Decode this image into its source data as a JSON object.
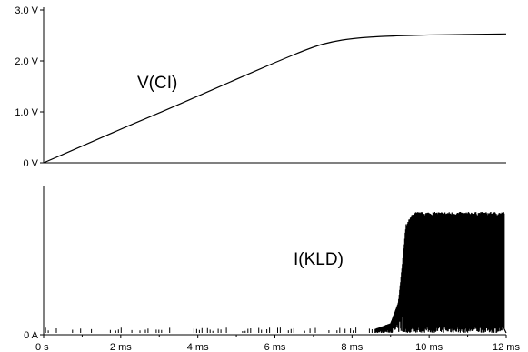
{
  "chart_data": [
    {
      "type": "line",
      "series": [
        {
          "name": "V(CI)",
          "x": [
            0,
            1,
            2,
            3,
            4,
            5,
            6,
            7,
            7.5,
            8,
            8.5,
            9,
            10,
            11,
            12
          ],
          "y": [
            0,
            0.33,
            0.66,
            0.98,
            1.31,
            1.64,
            1.97,
            2.28,
            2.38,
            2.44,
            2.47,
            2.49,
            2.51,
            2.52,
            2.53
          ]
        }
      ],
      "xlim": [
        0,
        12
      ],
      "ylim": [
        0,
        3
      ],
      "yticks": [
        "0 V",
        "1.0 V",
        "2.0 V",
        "3.0 V"
      ],
      "grid": false
    },
    {
      "type": "line",
      "series": [
        {
          "name": "I(KLD)",
          "x": [
            0,
            8.5,
            9,
            9.2,
            9.3,
            9.4,
            9.6,
            12
          ],
          "y": [
            0,
            0.02,
            0.08,
            0.25,
            0.55,
            0.9,
            1.0,
            1.0
          ]
        }
      ],
      "xlim": [
        0,
        12
      ],
      "xticks": [
        "0 s",
        "2 ms",
        "4 ms",
        "6 ms",
        "8 ms",
        "10 ms",
        "12 ms"
      ],
      "yticks": [
        "0 A"
      ],
      "grid": false
    }
  ]
}
